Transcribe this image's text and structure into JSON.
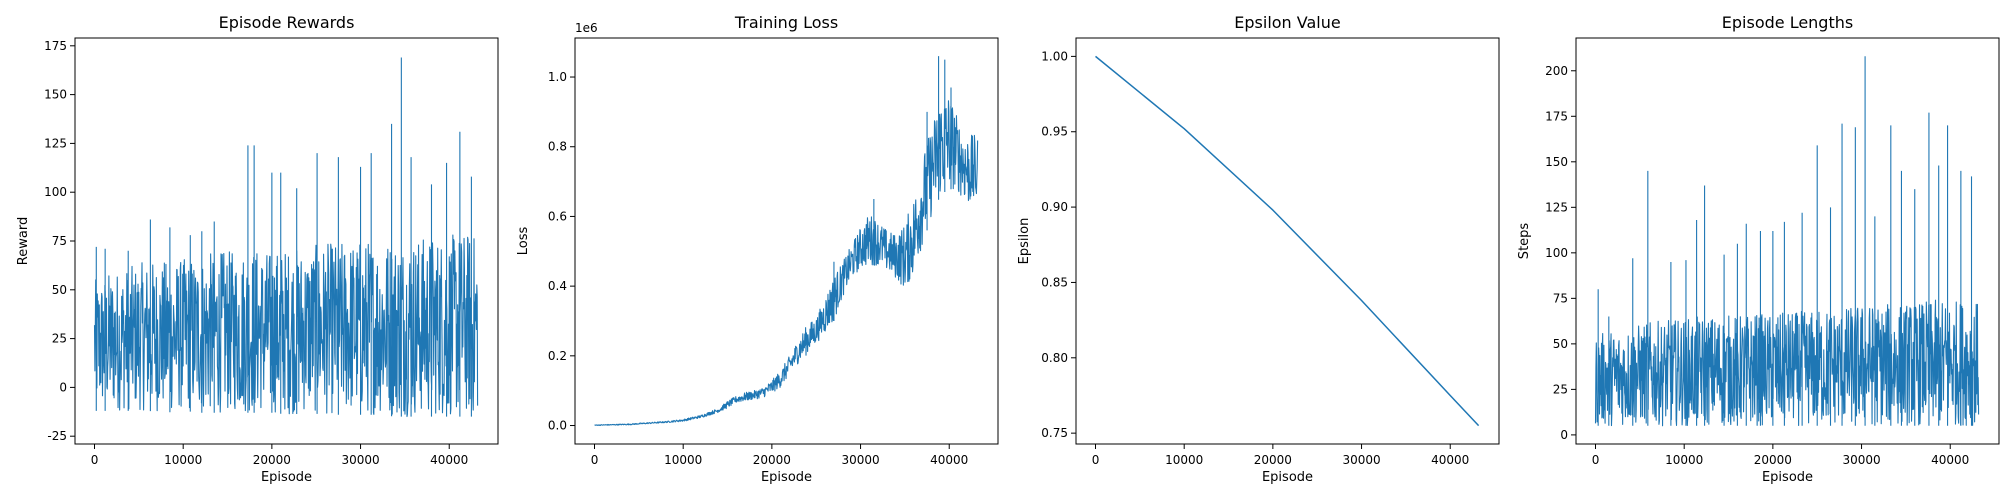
{
  "chart_data": [
    {
      "type": "line",
      "title": "Episode Rewards",
      "xlabel": "Episode",
      "ylabel": "Reward",
      "xlim": [
        -2200,
        45500
      ],
      "ylim": [
        -29,
        179
      ],
      "xticks": [
        0,
        10000,
        20000,
        30000,
        40000
      ],
      "yticks": [
        -25,
        0,
        25,
        50,
        75,
        100,
        125,
        150,
        175
      ],
      "x_max": 43200,
      "y_min": -20,
      "y_max": 169,
      "color": "#1f77b4",
      "grid": false,
      "series": [
        {
          "name": "",
          "x": [
            0,
            2000,
            4000,
            6000,
            8000,
            10000,
            12000,
            14000,
            16000,
            18000,
            20000,
            22000,
            24000,
            26000,
            28000,
            30000,
            32000,
            34000,
            36000,
            38000,
            40000,
            42000,
            43200
          ],
          "y_low": [
            -12,
            -12,
            -12,
            -12,
            -13,
            -12,
            -13,
            -13,
            -13,
            -13,
            -13,
            -14,
            -13,
            -14,
            -14,
            -14,
            -14,
            -15,
            -15,
            -15,
            -15,
            -15,
            -15
          ],
          "y_high": [
            55,
            60,
            62,
            65,
            65,
            66,
            68,
            70,
            70,
            72,
            70,
            72,
            72,
            74,
            75,
            76,
            76,
            77,
            77,
            78,
            78,
            80,
            78
          ],
          "spikes": [
            [
              200,
              72
            ],
            [
              1200,
              71
            ],
            [
              3800,
              70
            ],
            [
              6300,
              86
            ],
            [
              8500,
              82
            ],
            [
              10800,
              78
            ],
            [
              12100,
              80
            ],
            [
              13500,
              85
            ],
            [
              17300,
              124
            ],
            [
              18000,
              124
            ],
            [
              20000,
              110
            ],
            [
              21000,
              110
            ],
            [
              22800,
              102
            ],
            [
              25100,
              120
            ],
            [
              27500,
              118
            ],
            [
              30000,
              113
            ],
            [
              31200,
              120
            ],
            [
              33500,
              135
            ],
            [
              34600,
              169
            ],
            [
              35700,
              118
            ],
            [
              38000,
              104
            ],
            [
              39700,
              115
            ],
            [
              41200,
              131
            ],
            [
              42500,
              108
            ]
          ]
        }
      ]
    },
    {
      "type": "line",
      "title": "Training Loss",
      "xlabel": "Episode",
      "ylabel": "Loss",
      "offset_label": "1e6",
      "xlim": [
        -2200,
        45500
      ],
      "ylim": [
        -0.053,
        1.112
      ],
      "xticks": [
        0,
        10000,
        20000,
        30000,
        40000
      ],
      "yticks": [
        0.0,
        0.2,
        0.4,
        0.6,
        0.8,
        1.0
      ],
      "color": "#1f77b4",
      "grid": false,
      "series": [
        {
          "name": "",
          "x": [
            0,
            4000,
            8000,
            10000,
            12000,
            14000,
            15000,
            16000,
            17000,
            18000,
            19000,
            20000,
            21000,
            22000,
            23000,
            24000,
            25000,
            26000,
            27000,
            28000,
            29000,
            30000,
            31000,
            32000,
            33000,
            34000,
            35000,
            36000,
            37000,
            38000,
            39000,
            40000,
            41000,
            42000,
            43200
          ],
          "y_low": [
            0.0,
            0.002,
            0.008,
            0.012,
            0.022,
            0.038,
            0.05,
            0.065,
            0.07,
            0.075,
            0.08,
            0.092,
            0.11,
            0.145,
            0.18,
            0.205,
            0.235,
            0.265,
            0.3,
            0.37,
            0.42,
            0.45,
            0.46,
            0.46,
            0.44,
            0.42,
            0.39,
            0.43,
            0.52,
            0.6,
            0.66,
            0.68,
            0.67,
            0.63,
            0.62
          ],
          "y_high": [
            0.002,
            0.005,
            0.012,
            0.018,
            0.03,
            0.05,
            0.07,
            0.085,
            0.095,
            0.1,
            0.11,
            0.13,
            0.16,
            0.2,
            0.25,
            0.29,
            0.31,
            0.37,
            0.43,
            0.47,
            0.52,
            0.57,
            0.61,
            0.59,
            0.56,
            0.55,
            0.58,
            0.66,
            0.77,
            0.86,
            0.95,
            0.96,
            0.88,
            0.84,
            0.83
          ],
          "spikes": [
            [
              27000,
              0.47
            ],
            [
              31500,
              0.65
            ],
            [
              37500,
              0.9
            ],
            [
              38800,
              1.06
            ],
            [
              39500,
              1.05
            ],
            [
              40200,
              0.97
            ]
          ]
        }
      ]
    },
    {
      "type": "line",
      "title": "Epsilon Value",
      "xlabel": "Episode",
      "ylabel": "Epsilon",
      "xlim": [
        -2200,
        45500
      ],
      "ylim": [
        0.7428,
        1.0122
      ],
      "xticks": [
        0,
        10000,
        20000,
        30000,
        40000
      ],
      "yticks": [
        0.75,
        0.8,
        0.85,
        0.9,
        0.95,
        1.0
      ],
      "color": "#1f77b4",
      "grid": false,
      "series": [
        {
          "name": "",
          "x": [
            0,
            10000,
            20000,
            30000,
            40000,
            43200
          ],
          "y": [
            1.0,
            0.952,
            0.898,
            0.838,
            0.775,
            0.755
          ]
        }
      ]
    },
    {
      "type": "line",
      "title": "Episode Lengths",
      "xlabel": "Episode",
      "ylabel": "Steps",
      "xlim": [
        -2200,
        45500
      ],
      "ylim": [
        -5,
        218
      ],
      "xticks": [
        0,
        10000,
        20000,
        30000,
        40000
      ],
      "yticks": [
        0,
        25,
        50,
        75,
        100,
        125,
        150,
        175,
        200
      ],
      "color": "#1f77b4",
      "grid": false,
      "series": [
        {
          "name": "",
          "x": [
            0,
            2000,
            4000,
            6000,
            8000,
            10000,
            12000,
            14000,
            16000,
            18000,
            20000,
            22000,
            24000,
            26000,
            28000,
            30000,
            32000,
            34000,
            36000,
            38000,
            40000,
            42000,
            43200
          ],
          "y_low": [
            5,
            5,
            5,
            5,
            5,
            5,
            5,
            5,
            5,
            5,
            5,
            5,
            5,
            5,
            5,
            5,
            5,
            5,
            5,
            5,
            5,
            5,
            5
          ],
          "y_high": [
            55,
            58,
            60,
            62,
            63,
            64,
            65,
            66,
            66,
            67,
            66,
            68,
            68,
            70,
            70,
            72,
            72,
            72,
            73,
            74,
            74,
            75,
            73
          ],
          "spikes": [
            [
              300,
              80
            ],
            [
              1500,
              65
            ],
            [
              4200,
              97
            ],
            [
              5900,
              145
            ],
            [
              8500,
              95
            ],
            [
              10200,
              96
            ],
            [
              11400,
              118
            ],
            [
              12300,
              137
            ],
            [
              14500,
              99
            ],
            [
              16000,
              105
            ],
            [
              17000,
              116
            ],
            [
              18600,
              112
            ],
            [
              20000,
              112
            ],
            [
              21300,
              117
            ],
            [
              23300,
              122
            ],
            [
              25000,
              159
            ],
            [
              26500,
              125
            ],
            [
              27800,
              171
            ],
            [
              29300,
              169
            ],
            [
              30400,
              208
            ],
            [
              31500,
              120
            ],
            [
              33300,
              170
            ],
            [
              34500,
              145
            ],
            [
              36000,
              135
            ],
            [
              37600,
              177
            ],
            [
              38700,
              148
            ],
            [
              39700,
              170
            ],
            [
              41200,
              145
            ],
            [
              42400,
              142
            ]
          ]
        }
      ]
    }
  ]
}
